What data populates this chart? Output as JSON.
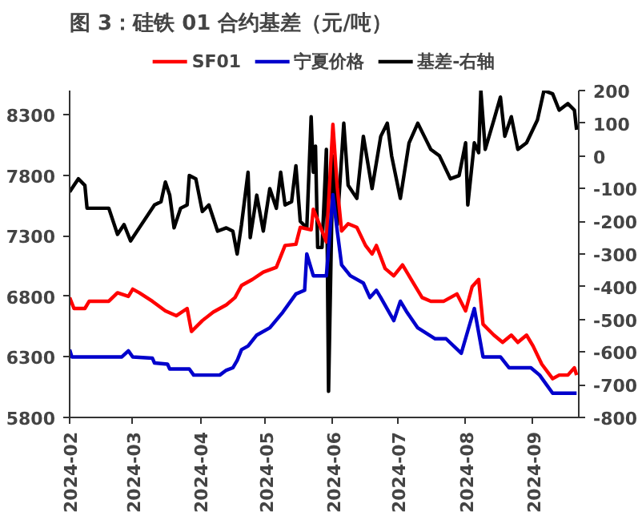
{
  "chart_data": {
    "type": "line",
    "title": "图 3：硅铁 01 合约基差（元/吨）",
    "xlim": [
      "2024-02-01",
      "2024-09-22"
    ],
    "xticks": [
      "2024-02",
      "2024-03",
      "2024-04",
      "2024-05",
      "2024-06",
      "2024-07",
      "2024-08",
      "2024-09"
    ],
    "ylim": [
      5800,
      8500
    ],
    "yticks": [
      5800,
      6300,
      6800,
      7300,
      7800,
      8300
    ],
    "y2lim": [
      -800,
      200
    ],
    "y2ticks": [
      -800,
      -700,
      -600,
      -500,
      -400,
      -300,
      -200,
      -100,
      0,
      100,
      200
    ],
    "grid": false,
    "legend": "top",
    "marker": "none",
    "line_style": "solid",
    "series": [
      {
        "name": "SF01",
        "color": "#ff0000",
        "x": [
          "2024-02-01",
          "2024-02-03",
          "2024-02-08",
          "2024-02-10",
          "2024-02-19",
          "2024-02-23",
          "2024-02-28",
          "2024-03-01",
          "2024-03-04",
          "2024-03-10",
          "2024-03-16",
          "2024-03-21",
          "2024-03-26",
          "2024-03-28",
          "2024-04-02",
          "2024-04-07",
          "2024-04-13",
          "2024-04-17",
          "2024-04-20",
          "2024-04-25",
          "2024-04-30",
          "2024-05-06",
          "2024-05-10",
          "2024-05-15",
          "2024-05-17",
          "2024-05-22",
          "2024-05-23",
          "2024-05-29",
          "2024-06-01",
          "2024-06-03",
          "2024-06-05",
          "2024-06-08",
          "2024-06-12",
          "2024-06-16",
          "2024-06-19",
          "2024-06-21",
          "2024-06-25",
          "2024-06-29",
          "2024-07-03",
          "2024-07-08",
          "2024-07-12",
          "2024-07-16",
          "2024-07-22",
          "2024-07-28",
          "2024-08-01",
          "2024-08-04",
          "2024-08-07",
          "2024-08-09",
          "2024-08-14",
          "2024-08-18",
          "2024-08-22",
          "2024-08-25",
          "2024-08-29",
          "2024-09-01",
          "2024-09-05",
          "2024-09-10",
          "2024-09-13",
          "2024-09-17",
          "2024-09-20",
          "2024-09-21"
        ],
        "values": [
          6790,
          6700,
          6700,
          6760,
          6760,
          6830,
          6800,
          6860,
          6830,
          6760,
          6680,
          6640,
          6700,
          6510,
          6600,
          6670,
          6730,
          6790,
          6890,
          6940,
          7000,
          7040,
          7220,
          7230,
          7370,
          7350,
          7520,
          7250,
          8220,
          7700,
          7340,
          7400,
          7370,
          7220,
          7150,
          7220,
          7030,
          6970,
          7060,
          6910,
          6790,
          6760,
          6760,
          6820,
          6680,
          6880,
          6940,
          6570,
          6480,
          6420,
          6480,
          6420,
          6480,
          6390,
          6240,
          6120,
          6150,
          6150,
          6210,
          6150
        ]
      },
      {
        "name": "宁夏价格",
        "color": "#0000cc",
        "x": [
          "2024-02-01",
          "2024-02-02",
          "2024-02-25",
          "2024-02-28",
          "2024-03-01",
          "2024-03-10",
          "2024-03-11",
          "2024-03-17",
          "2024-03-18",
          "2024-03-27",
          "2024-03-29",
          "2024-04-10",
          "2024-04-13",
          "2024-04-16",
          "2024-04-18",
          "2024-04-20",
          "2024-04-23",
          "2024-04-27",
          "2024-05-03",
          "2024-05-09",
          "2024-05-15",
          "2024-05-19",
          "2024-05-20",
          "2024-05-23",
          "2024-05-29",
          "2024-06-01",
          "2024-06-03",
          "2024-06-05",
          "2024-06-09",
          "2024-06-15",
          "2024-06-18",
          "2024-06-21",
          "2024-06-23",
          "2024-06-29",
          "2024-07-02",
          "2024-07-05",
          "2024-07-10",
          "2024-07-18",
          "2024-07-23",
          "2024-07-30",
          "2024-08-05",
          "2024-08-09",
          "2024-08-17",
          "2024-08-21",
          "2024-08-31",
          "2024-09-04",
          "2024-09-10",
          "2024-09-21"
        ],
        "values": [
          6360,
          6300,
          6300,
          6350,
          6300,
          6290,
          6250,
          6240,
          6200,
          6200,
          6150,
          6150,
          6190,
          6210,
          6270,
          6360,
          6390,
          6480,
          6540,
          6670,
          6820,
          6850,
          7150,
          6970,
          6970,
          7640,
          7340,
          7060,
          6970,
          6910,
          6790,
          6850,
          6790,
          6600,
          6760,
          6670,
          6540,
          6450,
          6450,
          6330,
          6700,
          6300,
          6300,
          6210,
          6210,
          6150,
          6000,
          6000
        ]
      },
      {
        "name": "基差-右轴",
        "color": "#000000",
        "axis": "y2",
        "x": [
          "2024-02-01",
          "2024-02-03",
          "2024-02-05",
          "2024-02-08",
          "2024-02-09",
          "2024-02-19",
          "2024-02-23",
          "2024-02-26",
          "2024-02-29",
          "2024-03-04",
          "2024-03-11",
          "2024-03-14",
          "2024-03-16",
          "2024-03-18",
          "2024-03-20",
          "2024-03-23",
          "2024-03-26",
          "2024-03-27",
          "2024-03-30",
          "2024-04-02",
          "2024-04-05",
          "2024-04-09",
          "2024-04-13",
          "2024-04-16",
          "2024-04-18",
          "2024-04-20",
          "2024-04-23",
          "2024-04-24",
          "2024-04-27",
          "2024-04-30",
          "2024-05-03",
          "2024-05-06",
          "2024-05-08",
          "2024-05-10",
          "2024-05-13",
          "2024-05-15",
          "2024-05-17",
          "2024-05-20",
          "2024-05-22",
          "2024-05-23",
          "2024-05-24",
          "2024-05-25",
          "2024-05-27",
          "2024-05-29",
          "2024-05-30",
          "2024-06-01",
          "2024-06-03",
          "2024-06-06",
          "2024-06-08",
          "2024-06-12",
          "2024-06-15",
          "2024-06-19",
          "2024-06-23",
          "2024-06-26",
          "2024-06-28",
          "2024-07-02",
          "2024-07-06",
          "2024-07-10",
          "2024-07-13",
          "2024-07-16",
          "2024-07-20",
          "2024-07-25",
          "2024-07-29",
          "2024-08-01",
          "2024-08-02",
          "2024-08-05",
          "2024-08-07",
          "2024-08-08",
          "2024-08-10",
          "2024-08-14",
          "2024-08-17",
          "2024-08-19",
          "2024-08-22",
          "2024-08-25",
          "2024-08-29",
          "2024-09-03",
          "2024-09-06",
          "2024-09-10",
          "2024-09-13",
          "2024-09-17",
          "2024-09-20",
          "2024-09-21"
        ],
        "values": [
          -110,
          -90,
          -70,
          -90,
          -160,
          -160,
          -240,
          -210,
          -260,
          -220,
          -150,
          -140,
          -80,
          -120,
          -220,
          -160,
          -150,
          -60,
          -70,
          -170,
          -150,
          -230,
          -220,
          -230,
          -300,
          -210,
          -50,
          -250,
          -120,
          -230,
          -100,
          -160,
          -50,
          -150,
          -140,
          -30,
          -200,
          -220,
          120,
          -50,
          30,
          -280,
          -280,
          20,
          -720,
          0,
          -210,
          100,
          -90,
          -130,
          60,
          -100,
          60,
          100,
          0,
          -130,
          40,
          100,
          60,
          20,
          0,
          -70,
          -60,
          40,
          -150,
          40,
          10,
          200,
          20,
          110,
          180,
          60,
          120,
          20,
          40,
          110,
          200,
          190,
          140,
          160,
          140,
          80
        ]
      }
    ]
  }
}
